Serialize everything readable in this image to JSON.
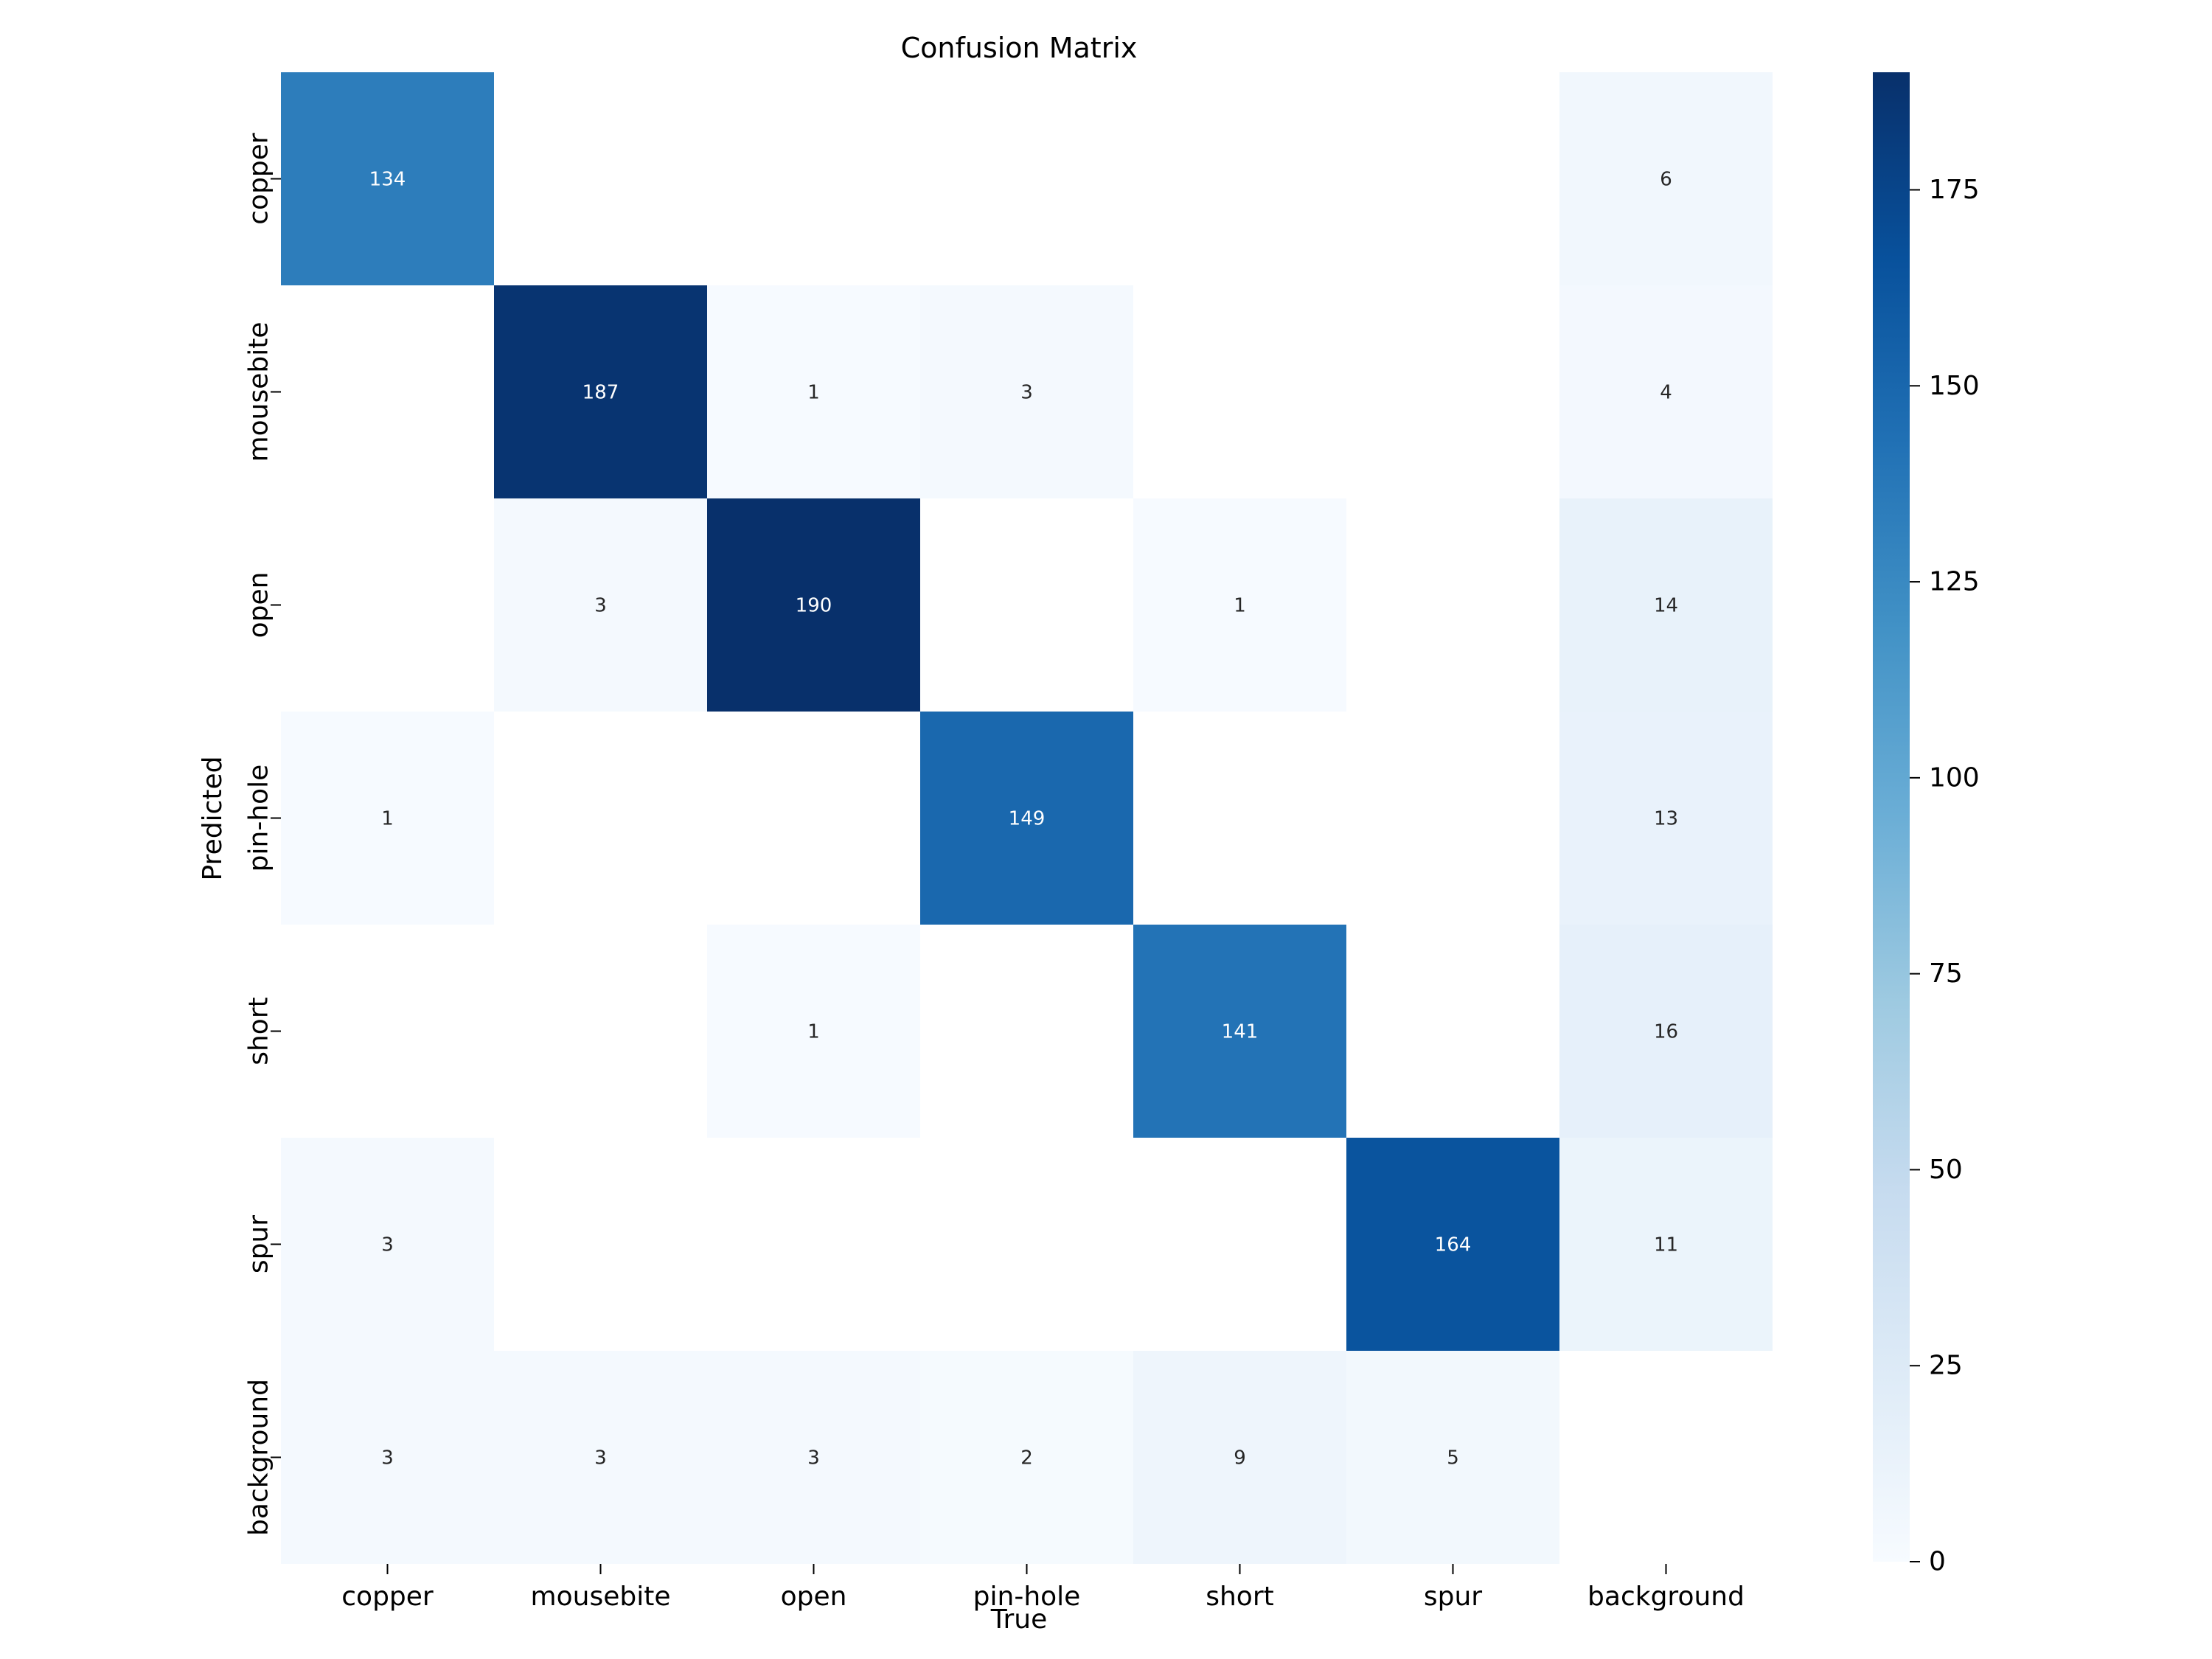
{
  "chart_data": {
    "type": "heatmap",
    "title": "Confusion Matrix",
    "xlabel": "True",
    "ylabel": "Predicted",
    "x_categories": [
      "copper",
      "mousebite",
      "open",
      "pin-hole",
      "short",
      "spur",
      "background"
    ],
    "y_categories": [
      "copper",
      "mousebite",
      "open",
      "pin-hole",
      "short",
      "spur",
      "background"
    ],
    "matrix": [
      [
        134,
        null,
        null,
        null,
        null,
        null,
        6
      ],
      [
        null,
        187,
        1,
        3,
        null,
        null,
        4
      ],
      [
        null,
        3,
        190,
        null,
        1,
        null,
        14
      ],
      [
        1,
        null,
        null,
        149,
        null,
        null,
        13
      ],
      [
        null,
        null,
        1,
        null,
        141,
        null,
        16
      ],
      [
        3,
        null,
        null,
        null,
        null,
        164,
        11
      ],
      [
        3,
        3,
        3,
        2,
        9,
        5,
        null
      ]
    ],
    "colormap": "Blues",
    "colorbar": {
      "range": [
        0,
        190
      ],
      "ticks": [
        0,
        25,
        50,
        75,
        100,
        125,
        150,
        175
      ]
    },
    "grid": false
  }
}
